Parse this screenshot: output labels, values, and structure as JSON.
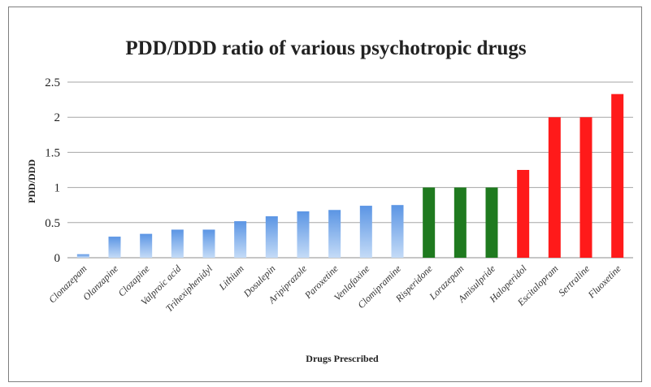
{
  "chart_data": {
    "type": "bar",
    "title": "PDD/DDD ratio of various psychotropic drugs",
    "xlabel": "Drugs Prescribed",
    "ylabel": "PDD/DDD",
    "ylim": [
      0,
      2.5
    ],
    "yticks": [
      "0",
      "0.5",
      "1",
      "1.5",
      "2",
      "2.5"
    ],
    "grid": true,
    "legend": "none",
    "colors": {
      "low": "#6fa3e8",
      "mid": "#1f7a1f",
      "high": "#ff1a1a"
    },
    "categories": [
      "Clonazepam",
      "Olanzapine",
      "Clozapine",
      "Valproic acid",
      "Trihexiphenidyl",
      "Lithium",
      "Dosulepin",
      "Aripiprazole",
      "Paroxetine",
      "Venlafaxine",
      "Clomipramine",
      "Risperidone",
      "Lorazepam",
      "Amisulpride",
      "Haloperidol",
      "Escitalopram",
      "Sertraline",
      "Fluoxetine"
    ],
    "values": [
      0.05,
      0.3,
      0.34,
      0.4,
      0.4,
      0.52,
      0.59,
      0.66,
      0.68,
      0.74,
      0.75,
      1.0,
      1.0,
      1.0,
      1.25,
      2.0,
      2.0,
      2.33
    ],
    "bar_colors": [
      "low",
      "low",
      "low",
      "low",
      "low",
      "low",
      "low",
      "low",
      "low",
      "low",
      "low",
      "mid",
      "mid",
      "mid",
      "high",
      "high",
      "high",
      "high"
    ]
  }
}
